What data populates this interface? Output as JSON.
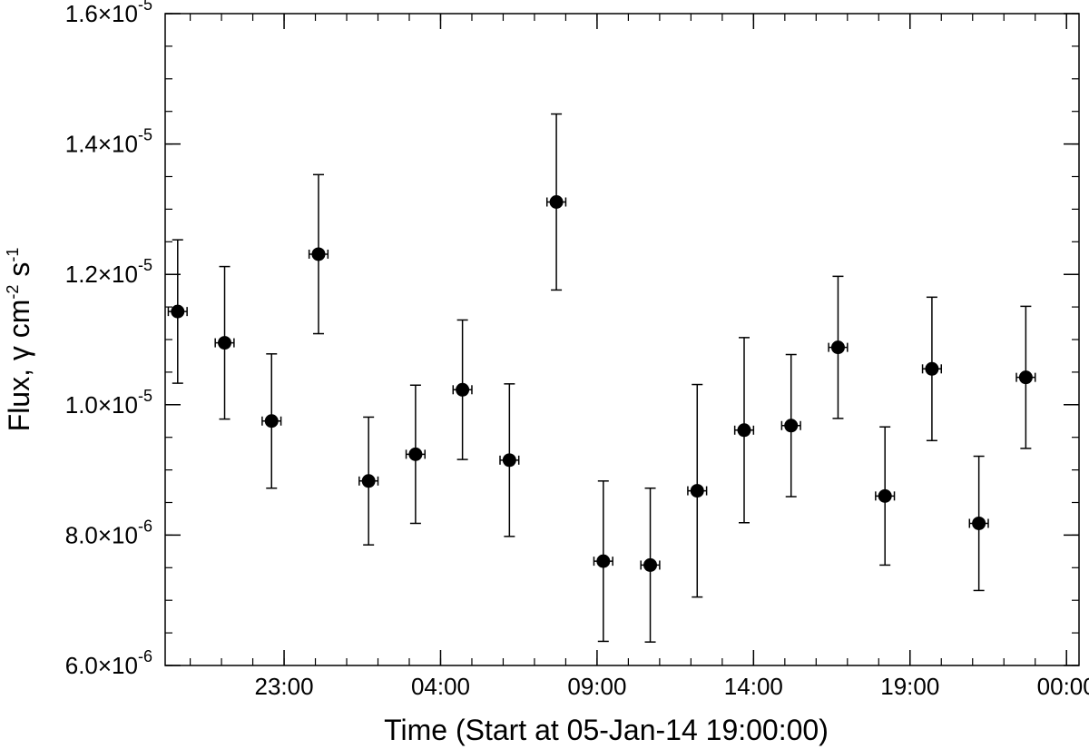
{
  "chart_data": {
    "type": "scatter",
    "title": "",
    "xlabel": "Time (Start at 05-Jan-14 19:00:00)",
    "ylabel": {
      "prefix": "Flux, ",
      "gamma": "γ",
      "cm": " cm",
      "cm_exp": "-2",
      "s": " s",
      "s_exp": "-1"
    },
    "x_unit": "hours since 05-Jan-14 19:00:00",
    "xlim": [
      19.2,
      48.4
    ],
    "ylim": [
      6e-06,
      1.6e-05
    ],
    "grid": false,
    "x_ticks": [
      {
        "value": 23,
        "label": "23:00"
      },
      {
        "value": 28,
        "label": "04:00"
      },
      {
        "value": 33,
        "label": "09:00"
      },
      {
        "value": 38,
        "label": "14:00"
      },
      {
        "value": 43,
        "label": "19:00"
      },
      {
        "value": 48,
        "label": "00:00"
      }
    ],
    "x_minor_step": 1,
    "y_ticks": [
      {
        "value": 6e-06,
        "mantissa": "6.0×10",
        "exp": "-6"
      },
      {
        "value": 8e-06,
        "mantissa": "8.0×10",
        "exp": "-6"
      },
      {
        "value": 1e-05,
        "mantissa": "1.0×10",
        "exp": "-5"
      },
      {
        "value": 1.2e-05,
        "mantissa": "1.2×10",
        "exp": "-5"
      },
      {
        "value": 1.4e-05,
        "mantissa": "1.4×10",
        "exp": "-5"
      },
      {
        "value": 1.6e-05,
        "mantissa": "1.6×10",
        "exp": "-5"
      }
    ],
    "y_minor_step": 5e-07,
    "x_err_hours": 0.3,
    "series": [
      {
        "points": [
          {
            "x": 19.6,
            "y": 1.143e-05,
            "yerr": 1.1e-06
          },
          {
            "x": 21.1,
            "y": 1.095e-05,
            "yerr": 1.17e-06
          },
          {
            "x": 22.6,
            "y": 9.75e-06,
            "yerr": 1.03e-06
          },
          {
            "x": 24.1,
            "y": 1.231e-05,
            "yerr": 1.22e-06
          },
          {
            "x": 25.7,
            "y": 8.83e-06,
            "yerr": 9.8e-07
          },
          {
            "x": 27.2,
            "y": 9.24e-06,
            "yerr": 1.06e-06
          },
          {
            "x": 28.7,
            "y": 1.023e-05,
            "yerr": 1.07e-06
          },
          {
            "x": 30.2,
            "y": 9.15e-06,
            "yerr": 1.17e-06
          },
          {
            "x": 31.7,
            "y": 1.311e-05,
            "yerr": 1.35e-06
          },
          {
            "x": 33.2,
            "y": 7.6e-06,
            "yerr": 1.23e-06
          },
          {
            "x": 34.7,
            "y": 7.54e-06,
            "yerr": 1.18e-06
          },
          {
            "x": 36.2,
            "y": 8.68e-06,
            "yerr": 1.63e-06
          },
          {
            "x": 37.7,
            "y": 9.61e-06,
            "yerr": 1.42e-06
          },
          {
            "x": 39.2,
            "y": 9.68e-06,
            "yerr": 1.09e-06
          },
          {
            "x": 40.7,
            "y": 1.088e-05,
            "yerr": 1.09e-06
          },
          {
            "x": 42.2,
            "y": 8.6e-06,
            "yerr": 1.06e-06
          },
          {
            "x": 43.7,
            "y": 1.055e-05,
            "yerr": 1.1e-06
          },
          {
            "x": 45.2,
            "y": 8.18e-06,
            "yerr": 1.03e-06
          },
          {
            "x": 46.7,
            "y": 1.042e-05,
            "yerr": 1.09e-06
          }
        ]
      }
    ]
  }
}
